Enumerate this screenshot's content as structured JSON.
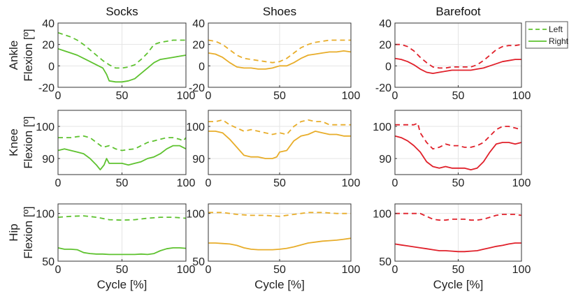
{
  "colors": {
    "socks": "#5ec22f",
    "shoes": "#e8ad2a",
    "barefoot": "#e0202a",
    "legend": "#5ec22f"
  },
  "legend": {
    "left_label": "Left",
    "right_label": "Right"
  },
  "chart_data": [
    {
      "type": "line",
      "title": "Socks",
      "ylabel": "",
      "xlabel": "",
      "xlim": [
        0,
        100
      ],
      "ylim": [
        -20,
        40
      ],
      "yticks": [
        -20,
        0,
        20,
        40
      ],
      "grid": true,
      "color_key": "socks",
      "series": [
        {
          "name": "Left",
          "style": "dashed",
          "x": [
            0,
            5,
            10,
            15,
            20,
            25,
            30,
            35,
            40,
            45,
            50,
            55,
            60,
            65,
            70,
            75,
            80,
            85,
            90,
            95,
            100
          ],
          "y": [
            31,
            29,
            27,
            24,
            20,
            15,
            10,
            5,
            1,
            -2,
            -2,
            -1,
            1,
            6,
            12,
            20,
            22,
            23,
            24,
            24,
            24
          ]
        },
        {
          "name": "Right",
          "style": "solid",
          "x": [
            0,
            5,
            10,
            15,
            20,
            25,
            30,
            35,
            38,
            40,
            45,
            50,
            55,
            60,
            65,
            70,
            75,
            80,
            85,
            90,
            95,
            100
          ],
          "y": [
            16,
            14,
            12,
            10,
            7,
            4,
            1,
            -2,
            -8,
            -14,
            -15,
            -15,
            -14,
            -12,
            -7,
            -2,
            3,
            6,
            7,
            8,
            9,
            10
          ]
        }
      ]
    },
    {
      "type": "line",
      "title": "Shoes",
      "ylabel": "",
      "xlabel": "",
      "xlim": [
        0,
        100
      ],
      "ylim": [
        -20,
        40
      ],
      "yticks": [
        -20,
        0,
        20,
        40
      ],
      "grid": true,
      "color_key": "shoes",
      "series": [
        {
          "name": "Left",
          "style": "dashed",
          "x": [
            0,
            5,
            10,
            15,
            20,
            25,
            30,
            35,
            40,
            45,
            50,
            55,
            60,
            65,
            70,
            75,
            80,
            85,
            90,
            95,
            100
          ],
          "y": [
            24,
            23,
            20,
            15,
            10,
            7,
            6,
            5,
            4,
            3,
            4,
            7,
            12,
            17,
            20,
            22,
            23,
            24,
            24,
            24,
            24
          ]
        },
        {
          "name": "Right",
          "style": "solid",
          "x": [
            0,
            5,
            10,
            15,
            20,
            25,
            30,
            35,
            40,
            45,
            50,
            55,
            60,
            65,
            70,
            75,
            80,
            85,
            90,
            95,
            100
          ],
          "y": [
            12,
            11,
            8,
            3,
            -1,
            -2,
            -2,
            -3,
            -3,
            -2,
            0,
            0,
            3,
            7,
            10,
            11,
            12,
            13,
            13,
            14,
            13
          ]
        }
      ]
    },
    {
      "type": "line",
      "title": "Barefoot",
      "ylabel": "",
      "xlabel": "",
      "xlim": [
        0,
        100
      ],
      "ylim": [
        -20,
        40
      ],
      "yticks": [
        -20,
        0,
        20,
        40
      ],
      "grid": true,
      "color_key": "barefoot",
      "series": [
        {
          "name": "Left",
          "style": "dashed",
          "x": [
            0,
            5,
            10,
            15,
            20,
            25,
            30,
            35,
            40,
            45,
            50,
            55,
            60,
            65,
            70,
            75,
            80,
            85,
            90,
            95,
            100
          ],
          "y": [
            20,
            20,
            18,
            14,
            8,
            3,
            -1,
            -2,
            -2,
            -1,
            -1,
            -1,
            -1,
            1,
            5,
            10,
            15,
            18,
            19,
            19,
            20
          ]
        },
        {
          "name": "Right",
          "style": "solid",
          "x": [
            0,
            5,
            10,
            15,
            20,
            25,
            30,
            35,
            40,
            45,
            50,
            55,
            60,
            65,
            70,
            75,
            80,
            85,
            90,
            95,
            100
          ],
          "y": [
            7,
            6,
            4,
            1,
            -3,
            -6,
            -7,
            -6,
            -5,
            -4,
            -4,
            -4,
            -4,
            -3,
            -2,
            0,
            2,
            4,
            5,
            6,
            6
          ]
        }
      ]
    },
    {
      "type": "line",
      "title": "",
      "ylabel": "",
      "xlabel": "",
      "xlim": [
        0,
        100
      ],
      "ylim": [
        85,
        105
      ],
      "yticks": [
        90,
        100
      ],
      "grid": true,
      "color_key": "socks",
      "series": [
        {
          "name": "Left",
          "style": "dashed",
          "x": [
            0,
            5,
            10,
            15,
            20,
            25,
            30,
            35,
            40,
            45,
            50,
            55,
            60,
            65,
            70,
            75,
            80,
            85,
            90,
            95,
            98,
            100
          ],
          "y": [
            96.5,
            96.5,
            96.5,
            96.8,
            97,
            96.5,
            95,
            93.5,
            94,
            93,
            92.5,
            92.8,
            93,
            94,
            95,
            95.5,
            96,
            96.5,
            96.5,
            96,
            95.5,
            96.5
          ]
        },
        {
          "name": "Right",
          "style": "solid",
          "x": [
            0,
            5,
            10,
            15,
            20,
            25,
            30,
            33,
            36,
            38,
            40,
            45,
            50,
            55,
            60,
            65,
            70,
            75,
            80,
            85,
            90,
            95,
            100
          ],
          "y": [
            92.5,
            93,
            92.5,
            92,
            91.5,
            90,
            88,
            86.5,
            88,
            90,
            88.5,
            88.5,
            88.5,
            88,
            88.5,
            89,
            90,
            90.5,
            91.5,
            93,
            94,
            94,
            93
          ]
        }
      ]
    },
    {
      "type": "line",
      "title": "",
      "ylabel": "",
      "xlabel": "",
      "xlim": [
        0,
        100
      ],
      "ylim": [
        85,
        105
      ],
      "yticks": [
        90,
        100
      ],
      "grid": true,
      "color_key": "shoes",
      "series": [
        {
          "name": "Left",
          "style": "dashed",
          "x": [
            0,
            5,
            10,
            15,
            20,
            25,
            30,
            35,
            40,
            45,
            50,
            55,
            60,
            65,
            70,
            75,
            80,
            85,
            90,
            95,
            100
          ],
          "y": [
            101.5,
            101.5,
            102,
            100.5,
            99.5,
            98.5,
            99,
            98.5,
            98,
            97.5,
            98,
            97.5,
            100,
            101.5,
            102,
            101.5,
            101.5,
            100.5,
            100.5,
            100.5,
            100.5
          ]
        },
        {
          "name": "Right",
          "style": "solid",
          "x": [
            0,
            5,
            10,
            15,
            20,
            25,
            30,
            35,
            40,
            45,
            48,
            50,
            55,
            60,
            65,
            70,
            75,
            80,
            85,
            90,
            95,
            100
          ],
          "y": [
            98.5,
            98.5,
            98,
            96,
            93.5,
            91,
            90.5,
            90.5,
            90,
            90,
            90.5,
            92,
            92.5,
            95.5,
            97,
            97.5,
            98.5,
            98,
            97.5,
            97.5,
            97,
            97
          ]
        }
      ]
    },
    {
      "type": "line",
      "title": "",
      "ylabel": "",
      "xlabel": "",
      "xlim": [
        0,
        100
      ],
      "ylim": [
        85,
        105
      ],
      "yticks": [
        90,
        100
      ],
      "grid": true,
      "color_key": "barefoot",
      "series": [
        {
          "name": "Left",
          "style": "dashed",
          "x": [
            0,
            5,
            10,
            15,
            18,
            20,
            25,
            30,
            35,
            40,
            45,
            50,
            55,
            60,
            65,
            70,
            75,
            80,
            85,
            90,
            95,
            100
          ],
          "y": [
            100.5,
            100.5,
            100.5,
            100.5,
            101,
            98,
            95,
            93,
            93.5,
            94.5,
            94,
            94,
            93.5,
            93.5,
            94,
            95,
            97,
            99,
            100,
            100,
            99.5,
            99
          ]
        },
        {
          "name": "Right",
          "style": "solid",
          "x": [
            0,
            5,
            10,
            15,
            20,
            25,
            30,
            35,
            40,
            45,
            50,
            55,
            60,
            65,
            70,
            75,
            80,
            85,
            90,
            95,
            100
          ],
          "y": [
            97,
            96.5,
            95.5,
            94,
            92,
            89,
            87.5,
            87,
            87.5,
            87,
            87,
            87,
            86.5,
            87,
            89,
            92,
            94.5,
            95,
            95,
            94.5,
            95
          ]
        }
      ]
    },
    {
      "type": "line",
      "title": "",
      "ylabel": "",
      "xlabel": "Cycle [%]",
      "xlim": [
        0,
        100
      ],
      "ylim": [
        50,
        110
      ],
      "yticks": [
        50,
        100
      ],
      "grid": true,
      "color_key": "socks",
      "series": [
        {
          "name": "Left",
          "style": "dashed",
          "x": [
            0,
            10,
            20,
            30,
            40,
            50,
            60,
            70,
            80,
            90,
            100
          ],
          "y": [
            96,
            97,
            97.5,
            96,
            93.5,
            93,
            93.5,
            95,
            96,
            96,
            95
          ]
        },
        {
          "name": "Right",
          "style": "solid",
          "x": [
            0,
            5,
            10,
            15,
            20,
            25,
            30,
            35,
            40,
            45,
            50,
            55,
            60,
            65,
            70,
            75,
            80,
            85,
            90,
            95,
            100
          ],
          "y": [
            64,
            62.5,
            62.5,
            62,
            59,
            58,
            57.5,
            57.5,
            57,
            57,
            57,
            57,
            57,
            57.5,
            57,
            58,
            61,
            63,
            64,
            64,
            63.5
          ]
        }
      ]
    },
    {
      "type": "line",
      "title": "",
      "ylabel": "",
      "xlabel": "Cycle [%]",
      "xlim": [
        0,
        100
      ],
      "ylim": [
        50,
        110
      ],
      "yticks": [
        50,
        100
      ],
      "grid": true,
      "color_key": "shoes",
      "series": [
        {
          "name": "Left",
          "style": "dashed",
          "x": [
            0,
            5,
            10,
            20,
            30,
            40,
            50,
            60,
            70,
            80,
            90,
            100
          ],
          "y": [
            101,
            101,
            101,
            99,
            98,
            98,
            97,
            99,
            101,
            101,
            100,
            100
          ]
        },
        {
          "name": "Right",
          "style": "solid",
          "x": [
            0,
            5,
            10,
            15,
            20,
            25,
            30,
            35,
            40,
            45,
            50,
            55,
            60,
            65,
            70,
            75,
            80,
            85,
            90,
            95,
            100
          ],
          "y": [
            69,
            69,
            68.5,
            68,
            66.5,
            64,
            62.5,
            62,
            62,
            62,
            62.5,
            63.5,
            65,
            67,
            69,
            70,
            71,
            71.5,
            72,
            73,
            74
          ]
        }
      ]
    },
    {
      "type": "line",
      "title": "",
      "ylabel": "",
      "xlabel": "Cycle [%]",
      "xlim": [
        0,
        100
      ],
      "ylim": [
        50,
        110
      ],
      "yticks": [
        50,
        100
      ],
      "grid": true,
      "color_key": "barefoot",
      "series": [
        {
          "name": "Left",
          "style": "dashed",
          "x": [
            0,
            5,
            10,
            15,
            20,
            25,
            30,
            35,
            40,
            45,
            50,
            55,
            60,
            65,
            70,
            75,
            80,
            85,
            90,
            95,
            100
          ],
          "y": [
            100,
            100,
            100,
            100,
            100,
            97,
            94,
            93,
            93,
            94,
            94,
            94,
            93,
            93,
            94,
            96,
            98,
            99,
            99,
            99,
            98
          ]
        },
        {
          "name": "Right",
          "style": "solid",
          "x": [
            0,
            5,
            10,
            15,
            20,
            25,
            30,
            35,
            40,
            45,
            50,
            55,
            60,
            65,
            70,
            75,
            80,
            85,
            90,
            95,
            100
          ],
          "y": [
            68,
            67,
            66,
            65,
            64,
            63,
            62,
            61,
            61,
            60.5,
            60,
            60,
            60.5,
            61,
            62.5,
            64,
            65.5,
            66.5,
            68,
            69,
            69
          ]
        }
      ]
    }
  ],
  "row_labels": [
    {
      "line1": "Ankle",
      "line2": "Flexion [º]"
    },
    {
      "line1": "Knee",
      "line2": "Flexion [º]"
    },
    {
      "line1": "Hip",
      "line2": "Flexion [º]"
    }
  ],
  "xticks": [
    0,
    50,
    100
  ]
}
